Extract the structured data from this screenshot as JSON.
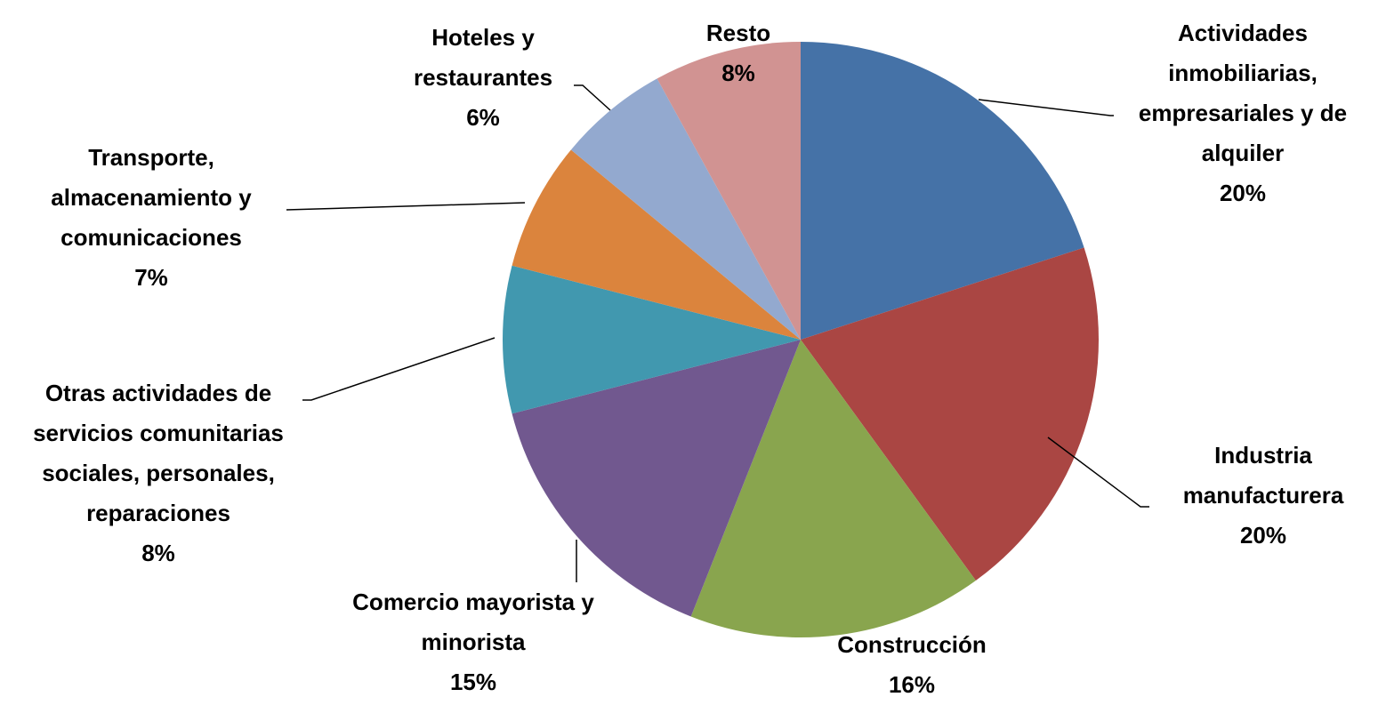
{
  "chart_data": {
    "type": "pie",
    "categories": [
      "Actividades inmobiliarias, empresariales y de alquiler",
      "Industria manufacturera",
      "Construcción",
      "Comercio mayorista y minorista",
      "Otras actividades de servicios comunitarias sociales, personales, reparaciones",
      "Transporte, almacenamiento y comunicaciones",
      "Hoteles y restaurantes",
      "Resto"
    ],
    "values": [
      20,
      20,
      16,
      15,
      8,
      7,
      6,
      8
    ],
    "value_labels": [
      "20%",
      "20%",
      "16%",
      "15%",
      "8%",
      "7%",
      "6%",
      "8%"
    ],
    "colors": [
      "#4572a7",
      "#aa4643",
      "#89a54e",
      "#71588f",
      "#4198af",
      "#db843d",
      "#93a9cf",
      "#d19392"
    ]
  }
}
